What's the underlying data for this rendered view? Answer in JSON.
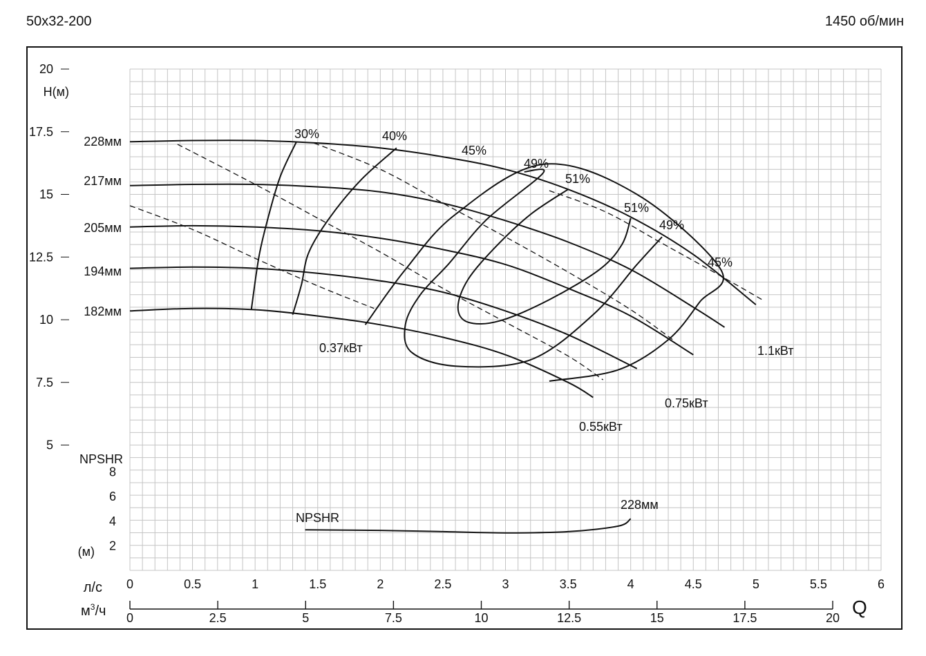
{
  "header": {
    "model": "50x32-200",
    "speed": "1450 об/мин"
  },
  "chart_data": {
    "type": "line",
    "head_axis": {
      "label": "H(м)",
      "ylim": [
        3.5,
        20
      ],
      "ticks": [
        "20",
        "17.5",
        "15",
        "12.5",
        "10",
        "7.5",
        "5"
      ]
    },
    "npshr_axis": {
      "label": "NPSHR",
      "unit": "(м)",
      "ylim": [
        0,
        9
      ],
      "ticks": [
        "8",
        "6",
        "4",
        "2"
      ]
    },
    "flow_axis_ls": {
      "label": "л/с",
      "xlim": [
        0,
        6
      ],
      "ticks": [
        "0",
        "0.5",
        "1",
        "1.5",
        "2",
        "2.5",
        "3",
        "3.5",
        "4",
        "4.5",
        "5",
        "5.5",
        "6"
      ]
    },
    "flow_axis_m3h": {
      "label": "м",
      "label_sup": "3",
      "label_tail": "/ч",
      "ticks": [
        "0",
        "2.5",
        "5",
        "7.5",
        "10",
        "12.5",
        "15",
        "17.5",
        "20"
      ]
    },
    "flow_symbol": "Q",
    "grid": true,
    "head_curves": [
      {
        "name": "228мм",
        "points": [
          [
            0,
            17.1
          ],
          [
            0.5,
            17.15
          ],
          [
            1,
            17.15
          ],
          [
            1.5,
            17.05
          ],
          [
            2,
            16.85
          ],
          [
            2.5,
            16.5
          ],
          [
            3,
            16.0
          ],
          [
            3.5,
            15.2
          ],
          [
            4,
            14.1
          ],
          [
            4.5,
            12.6
          ],
          [
            5,
            10.6
          ]
        ]
      },
      {
        "name": "217мм",
        "points": [
          [
            0,
            15.35
          ],
          [
            0.5,
            15.4
          ],
          [
            1,
            15.4
          ],
          [
            1.5,
            15.3
          ],
          [
            2,
            15.1
          ],
          [
            2.5,
            14.65
          ],
          [
            3,
            13.95
          ],
          [
            3.5,
            13.1
          ],
          [
            4,
            12.0
          ],
          [
            4.5,
            10.5
          ],
          [
            4.75,
            9.7
          ]
        ]
      },
      {
        "name": "205мм",
        "points": [
          [
            0,
            13.7
          ],
          [
            0.5,
            13.75
          ],
          [
            1,
            13.7
          ],
          [
            1.5,
            13.55
          ],
          [
            2,
            13.25
          ],
          [
            2.5,
            12.8
          ],
          [
            3,
            12.2
          ],
          [
            3.5,
            11.25
          ],
          [
            4,
            10.15
          ],
          [
            4.5,
            8.6
          ],
          [
            4.3,
            8.9
          ]
        ]
      },
      {
        "name": "194мм",
        "points": [
          [
            0,
            12.05
          ],
          [
            0.5,
            12.1
          ],
          [
            1,
            12.05
          ],
          [
            1.5,
            11.85
          ],
          [
            2,
            11.55
          ],
          [
            2.5,
            11.1
          ],
          [
            3,
            10.35
          ],
          [
            3.5,
            9.4
          ],
          [
            4.05,
            8.05
          ]
        ]
      },
      {
        "name": "182мм",
        "points": [
          [
            0,
            10.35
          ],
          [
            0.5,
            10.45
          ],
          [
            1,
            10.4
          ],
          [
            1.5,
            10.15
          ],
          [
            2,
            9.8
          ],
          [
            2.5,
            9.3
          ],
          [
            3,
            8.6
          ],
          [
            3.5,
            7.5
          ],
          [
            3.7,
            6.9
          ]
        ]
      }
    ],
    "efficiency_labels": [
      "30%",
      "40%",
      "45%",
      "49%",
      "51%",
      "51%",
      "49%",
      "45%"
    ],
    "efficiency_lines": [
      {
        "name": "30%",
        "points": [
          [
            1.33,
            17.1
          ],
          [
            1.2,
            15.7
          ],
          [
            1.1,
            14.0
          ],
          [
            1.03,
            12.5
          ],
          [
            0.97,
            10.4
          ]
        ]
      },
      {
        "name": "40%",
        "points": [
          [
            2.13,
            16.85
          ],
          [
            1.85,
            15.6
          ],
          [
            1.6,
            14.1
          ],
          [
            1.43,
            12.7
          ],
          [
            1.37,
            11.4
          ],
          [
            1.3,
            10.2
          ]
        ]
      },
      {
        "name": "45%",
        "points": [
          [
            1.88,
            9.8
          ],
          [
            2.2,
            12.0
          ],
          [
            2.6,
            14.2
          ],
          [
            3.3,
            16.2
          ],
          [
            4.05,
            15.0
          ],
          [
            4.72,
            12.0
          ],
          [
            4.55,
            10.7
          ],
          [
            4.3,
            9.2
          ],
          [
            3.9,
            8.0
          ],
          [
            3.35,
            7.55
          ]
        ]
      },
      {
        "name": "49%",
        "points": [
          [
            4.25,
            13.3
          ],
          [
            4.05,
            12.2
          ],
          [
            3.7,
            10.2
          ],
          [
            3.2,
            8.4
          ],
          [
            2.6,
            8.15
          ],
          [
            2.25,
            8.7
          ],
          [
            2.2,
            9.8
          ],
          [
            2.32,
            11.0
          ],
          [
            2.55,
            12.25
          ],
          [
            2.85,
            14.0
          ],
          [
            3.3,
            15.85
          ],
          [
            3.15,
            15.9
          ]
        ]
      },
      {
        "name": "51%",
        "points": [
          [
            3.5,
            15.2
          ],
          [
            3.2,
            14.2
          ],
          [
            2.92,
            12.9
          ],
          [
            2.7,
            11.6
          ],
          [
            2.62,
            10.5
          ],
          [
            2.7,
            9.9
          ],
          [
            2.95,
            9.95
          ],
          [
            3.35,
            10.8
          ],
          [
            3.75,
            12.0
          ],
          [
            3.93,
            13.0
          ],
          [
            4.0,
            14.05
          ]
        ]
      }
    ],
    "power_lines": [
      {
        "name": "0.37кВт",
        "points": [
          [
            0,
            14.55
          ],
          [
            0.5,
            13.6
          ],
          [
            1,
            12.45
          ],
          [
            1.5,
            11.35
          ],
          [
            1.95,
            10.45
          ]
        ]
      },
      {
        "name": "0.55кВт",
        "points": [
          [
            0.38,
            17.0
          ],
          [
            1,
            15.4
          ],
          [
            1.5,
            14.05
          ],
          [
            2,
            12.7
          ],
          [
            2.5,
            11.25
          ],
          [
            3,
            9.9
          ],
          [
            3.5,
            8.55
          ],
          [
            3.78,
            7.6
          ]
        ]
      },
      {
        "name": "0.75кВт",
        "points": [
          [
            1.47,
            17.05
          ],
          [
            2,
            16.0
          ],
          [
            2.5,
            14.65
          ],
          [
            3,
            13.3
          ],
          [
            3.5,
            11.9
          ],
          [
            4,
            10.4
          ],
          [
            4.35,
            9.15
          ]
        ]
      },
      {
        "name": "1.1кВт",
        "points": [
          [
            3.35,
            15.15
          ],
          [
            3.8,
            14.3
          ],
          [
            4.25,
            13.05
          ],
          [
            4.7,
            11.8
          ],
          [
            5.05,
            10.8
          ]
        ]
      }
    ],
    "npshr_curve": {
      "name": "NPSHR",
      "diameter_label": "228мм",
      "points": [
        [
          1.4,
          3.3
        ],
        [
          2,
          3.25
        ],
        [
          2.5,
          3.15
        ],
        [
          3,
          3.05
        ],
        [
          3.5,
          3.15
        ],
        [
          3.9,
          3.6
        ],
        [
          4.0,
          4.2
        ]
      ]
    }
  }
}
